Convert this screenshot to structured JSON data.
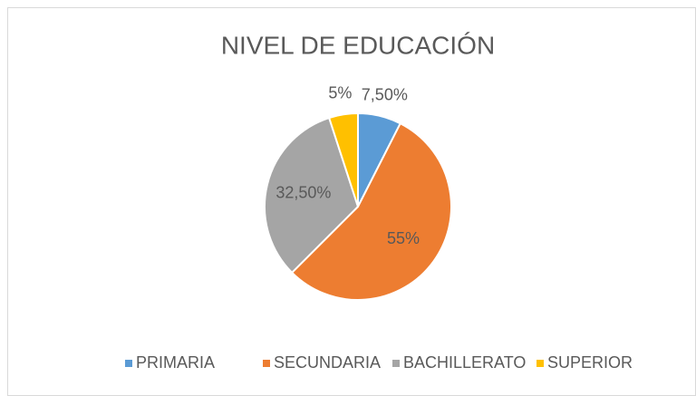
{
  "chart_data": {
    "type": "pie",
    "title": "NIVEL DE EDUCACIÓN",
    "categories": [
      "PRIMARIA",
      "SECUNDARIA",
      "BACHILLERATO",
      "SUPERIOR"
    ],
    "values": [
      7.5,
      55,
      32.5,
      5
    ],
    "value_labels": [
      "7,50%",
      "55%",
      "32,50%",
      "5%"
    ],
    "colors": [
      "#5b9bd5",
      "#ed7d31",
      "#a5a5a5",
      "#ffc000"
    ],
    "legend": "bottom"
  }
}
